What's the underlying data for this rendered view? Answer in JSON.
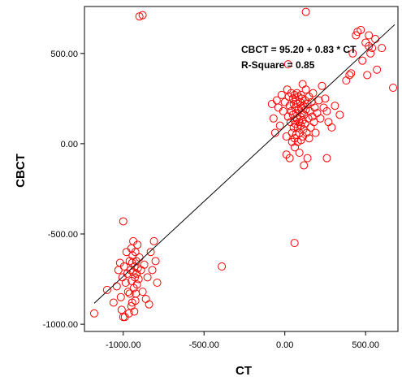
{
  "chart_data": {
    "type": "scatter",
    "xlabel": "CT",
    "ylabel": "CBCT",
    "xlim": [
      -1240,
      700
    ],
    "ylim": [
      -1040,
      760
    ],
    "x_ticks": [
      -1000,
      -500,
      0,
      500
    ],
    "x_tick_labels": [
      "-1000.00",
      "-500.00",
      "0.00",
      "500.00"
    ],
    "y_ticks": [
      -1000,
      -500,
      0,
      500
    ],
    "y_tick_labels": [
      "-1000.00",
      "-500.00",
      "0.00",
      "500.00"
    ],
    "grid": false,
    "marker_color": "#ff0000",
    "line_color": "#000000",
    "annotations": [
      "CBCT = 95.20 + 0.83 * CT",
      "R-Square = 0.85"
    ],
    "fit_line": {
      "intercept": 95.2,
      "slope": 0.83,
      "x_range": [
        -1180,
        680
      ]
    },
    "points": [
      [
        -900,
        705
      ],
      [
        -880,
        712
      ],
      [
        130,
        730
      ],
      [
        -1180,
        -940
      ],
      [
        -1100,
        -810
      ],
      [
        -1060,
        -880
      ],
      [
        -1040,
        -790
      ],
      [
        -1030,
        -700
      ],
      [
        -1020,
        -660
      ],
      [
        -1015,
        -850
      ],
      [
        -1010,
        -920
      ],
      [
        -1005,
        -740
      ],
      [
        -1000,
        -430
      ],
      [
        -995,
        -680
      ],
      [
        -990,
        -960
      ],
      [
        -985,
        -770
      ],
      [
        -980,
        -600
      ],
      [
        -975,
        -720
      ],
      [
        -970,
        -820
      ],
      [
        -965,
        -940
      ],
      [
        -960,
        -650
      ],
      [
        -955,
        -700
      ],
      [
        -950,
        -580
      ],
      [
        -948,
        -760
      ],
      [
        -945,
        -880
      ],
      [
        -942,
        -620
      ],
      [
        -940,
        -710
      ],
      [
        -938,
        -540
      ],
      [
        -935,
        -800
      ],
      [
        -932,
        -930
      ],
      [
        -930,
        -680
      ],
      [
        -928,
        -740
      ],
      [
        -925,
        -600
      ],
      [
        -922,
        -830
      ],
      [
        -920,
        -650
      ],
      [
        -918,
        -720
      ],
      [
        -915,
        -780
      ],
      [
        -912,
        -560
      ],
      [
        -910,
        -690
      ],
      [
        -905,
        -750
      ],
      [
        -900,
        -630
      ],
      [
        -890,
        -700
      ],
      [
        -880,
        -820
      ],
      [
        -870,
        -670
      ],
      [
        -860,
        -860
      ],
      [
        -850,
        -740
      ],
      [
        -840,
        -890
      ],
      [
        -830,
        -600
      ],
      [
        -820,
        -700
      ],
      [
        -810,
        -540
      ],
      [
        -800,
        -650
      ],
      [
        -790,
        -770
      ],
      [
        -950,
        -900
      ],
      [
        -960,
        -830
      ],
      [
        -1000,
        -960
      ],
      [
        -945,
        -660
      ],
      [
        -925,
        -870
      ],
      [
        -390,
        -680
      ],
      [
        60,
        -550
      ],
      [
        -80,
        220
      ],
      [
        -70,
        140
      ],
      [
        -60,
        60
      ],
      [
        -50,
        240
      ],
      [
        -40,
        200
      ],
      [
        -30,
        100
      ],
      [
        -20,
        270
      ],
      [
        -10,
        180
      ],
      [
        0,
        230
      ],
      [
        10,
        40
      ],
      [
        10,
        -60
      ],
      [
        15,
        300
      ],
      [
        20,
        150
      ],
      [
        20,
        440
      ],
      [
        25,
        260
      ],
      [
        30,
        210
      ],
      [
        30,
        -80
      ],
      [
        35,
        120
      ],
      [
        40,
        280
      ],
      [
        40,
        180
      ],
      [
        45,
        60
      ],
      [
        45,
        10
      ],
      [
        50,
        250
      ],
      [
        50,
        160
      ],
      [
        55,
        90
      ],
      [
        55,
        220
      ],
      [
        60,
        270
      ],
      [
        60,
        130
      ],
      [
        60,
        30
      ],
      [
        62,
        -20
      ],
      [
        65,
        200
      ],
      [
        65,
        110
      ],
      [
        70,
        240
      ],
      [
        70,
        170
      ],
      [
        70,
        50
      ],
      [
        75,
        280
      ],
      [
        75,
        140
      ],
      [
        80,
        90
      ],
      [
        80,
        10
      ],
      [
        80,
        220
      ],
      [
        85,
        260
      ],
      [
        85,
        190
      ],
      [
        90,
        120
      ],
      [
        90,
        60
      ],
      [
        90,
        -50
      ],
      [
        95,
        230
      ],
      [
        95,
        150
      ],
      [
        100,
        270
      ],
      [
        100,
        200
      ],
      [
        100,
        100
      ],
      [
        100,
        20
      ],
      [
        105,
        170
      ],
      [
        105,
        250
      ],
      [
        110,
        130
      ],
      [
        110,
        330
      ],
      [
        112,
        40
      ],
      [
        115,
        210
      ],
      [
        115,
        80
      ],
      [
        118,
        -120
      ],
      [
        120,
        160
      ],
      [
        125,
        240
      ],
      [
        125,
        110
      ],
      [
        130,
        190
      ],
      [
        130,
        300
      ],
      [
        135,
        60
      ],
      [
        140,
        220
      ],
      [
        140,
        -80
      ],
      [
        145,
        140
      ],
      [
        150,
        260
      ],
      [
        150,
        30
      ],
      [
        155,
        180
      ],
      [
        160,
        90
      ],
      [
        165,
        230
      ],
      [
        170,
        150
      ],
      [
        175,
        280
      ],
      [
        180,
        120
      ],
      [
        185,
        200
      ],
      [
        190,
        60
      ],
      [
        200,
        170
      ],
      [
        210,
        240
      ],
      [
        220,
        140
      ],
      [
        230,
        320
      ],
      [
        240,
        200
      ],
      [
        250,
        250
      ],
      [
        260,
        180
      ],
      [
        270,
        120
      ],
      [
        290,
        90
      ],
      [
        310,
        210
      ],
      [
        340,
        160
      ],
      [
        260,
        -80
      ],
      [
        380,
        350
      ],
      [
        400,
        380
      ],
      [
        420,
        500
      ],
      [
        450,
        620
      ],
      [
        470,
        630
      ],
      [
        480,
        460
      ],
      [
        500,
        560
      ],
      [
        510,
        380
      ],
      [
        520,
        540
      ],
      [
        530,
        500
      ],
      [
        540,
        530
      ],
      [
        560,
        580
      ],
      [
        570,
        410
      ],
      [
        600,
        530
      ],
      [
        670,
        310
      ],
      [
        410,
        390
      ],
      [
        440,
        600
      ],
      [
        520,
        600
      ]
    ]
  }
}
